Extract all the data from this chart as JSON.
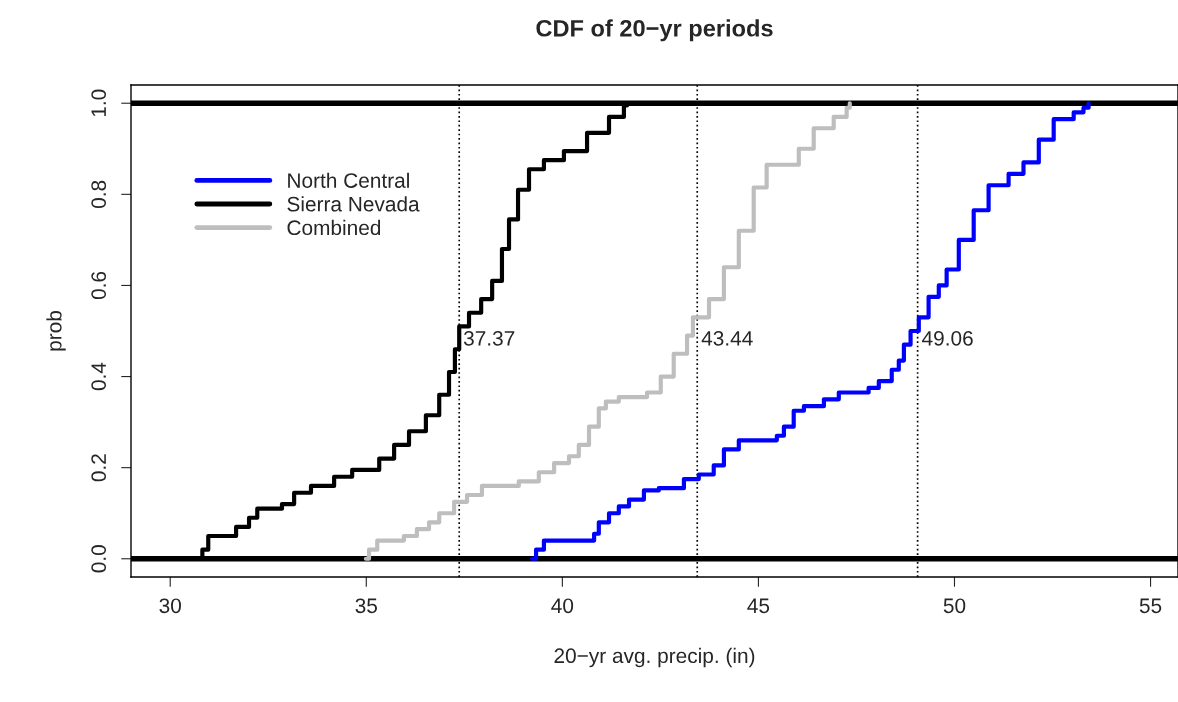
{
  "chart_data": {
    "type": "step",
    "title": "CDF of 20−yr periods",
    "xlabel": "20−yr avg. precip. (in)",
    "ylabel": "prob",
    "xlim": [
      29,
      55.7
    ],
    "xticks": [
      30,
      35,
      40,
      45,
      50,
      55
    ],
    "ylim": [
      -0.04,
      1.04
    ],
    "yticks": [
      {
        "value": 0,
        "label": "0.0"
      },
      0.2,
      0.4,
      0.6,
      0.8,
      {
        "value": 1,
        "label": "1.0"
      }
    ],
    "grid": false,
    "legend": "top left",
    "line_style": "solid",
    "marker": "none",
    "series": [
      {
        "name": "North Central",
        "color": "#0000ff",
        "x": [
          39.23,
          39.33,
          39.53,
          40.81,
          40.93,
          41.19,
          41.44,
          41.7,
          42.08,
          42.46,
          43.1,
          43.48,
          43.86,
          44.12,
          44.5,
          45.47,
          45.65,
          45.9,
          46.16,
          46.67,
          47.05,
          47.81,
          48.07,
          48.4,
          48.58,
          48.71,
          48.88,
          49.09,
          49.34,
          49.6,
          49.8,
          50.11,
          50.49,
          50.87,
          51.38,
          51.76,
          52.15,
          52.53,
          53.04,
          53.29,
          53.42
        ],
        "values": [
          0.0,
          0.02,
          0.04,
          0.055,
          0.08,
          0.1,
          0.115,
          0.13,
          0.15,
          0.155,
          0.175,
          0.185,
          0.205,
          0.24,
          0.26,
          0.27,
          0.29,
          0.325,
          0.335,
          0.35,
          0.365,
          0.375,
          0.39,
          0.415,
          0.435,
          0.47,
          0.5,
          0.53,
          0.575,
          0.6,
          0.635,
          0.7,
          0.765,
          0.82,
          0.845,
          0.87,
          0.92,
          0.965,
          0.98,
          0.99,
          1.0
        ]
      },
      {
        "name": "Sierra Nevada",
        "color": "#000000",
        "x": [
          30.69,
          30.82,
          30.97,
          31.68,
          32.01,
          32.22,
          32.85,
          33.16,
          33.59,
          34.18,
          34.64,
          35.33,
          35.71,
          36.09,
          36.52,
          36.86,
          37.11,
          37.26,
          37.37,
          37.62,
          37.93,
          38.21,
          38.46,
          38.64,
          38.87,
          39.15,
          39.53,
          40.04,
          40.63,
          41.19,
          41.57,
          41.65
        ],
        "values": [
          0.0,
          0.02,
          0.05,
          0.07,
          0.09,
          0.11,
          0.12,
          0.145,
          0.16,
          0.18,
          0.195,
          0.22,
          0.25,
          0.28,
          0.315,
          0.36,
          0.41,
          0.46,
          0.51,
          0.54,
          0.57,
          0.61,
          0.68,
          0.745,
          0.81,
          0.855,
          0.875,
          0.895,
          0.935,
          0.97,
          0.995,
          1.0
        ]
      },
      {
        "name": "Combined",
        "color": "#bebebe",
        "x": [
          34.99,
          35.07,
          35.28,
          35.96,
          36.29,
          36.6,
          36.86,
          37.24,
          37.57,
          37.95,
          38.89,
          39.4,
          39.79,
          40.17,
          40.42,
          40.68,
          40.93,
          41.11,
          41.44,
          42.16,
          42.51,
          42.84,
          43.18,
          43.33,
          43.74,
          44.12,
          44.5,
          44.88,
          45.21,
          46.03,
          46.41,
          46.92,
          47.25,
          47.33
        ],
        "values": [
          0.0,
          0.02,
          0.04,
          0.05,
          0.065,
          0.08,
          0.1,
          0.125,
          0.14,
          0.16,
          0.17,
          0.19,
          0.21,
          0.225,
          0.25,
          0.29,
          0.33,
          0.345,
          0.355,
          0.365,
          0.4,
          0.45,
          0.49,
          0.53,
          0.57,
          0.64,
          0.72,
          0.815,
          0.865,
          0.9,
          0.945,
          0.97,
          0.99,
          1.0
        ]
      }
    ],
    "ref_lines": [
      {
        "axis": "y",
        "value": 0,
        "color": "#000000",
        "line_style": "solid"
      },
      {
        "axis": "y",
        "value": 1,
        "color": "#000000",
        "line_style": "solid"
      },
      {
        "axis": "x",
        "value": 37.37,
        "label": "37.37",
        "color": "#000000",
        "line_style": "dotted"
      },
      {
        "axis": "x",
        "value": 43.44,
        "label": "43.44",
        "color": "#000000",
        "line_style": "dotted"
      },
      {
        "axis": "x",
        "value": 49.06,
        "label": "49.06",
        "color": "#000000",
        "line_style": "dotted"
      }
    ]
  }
}
